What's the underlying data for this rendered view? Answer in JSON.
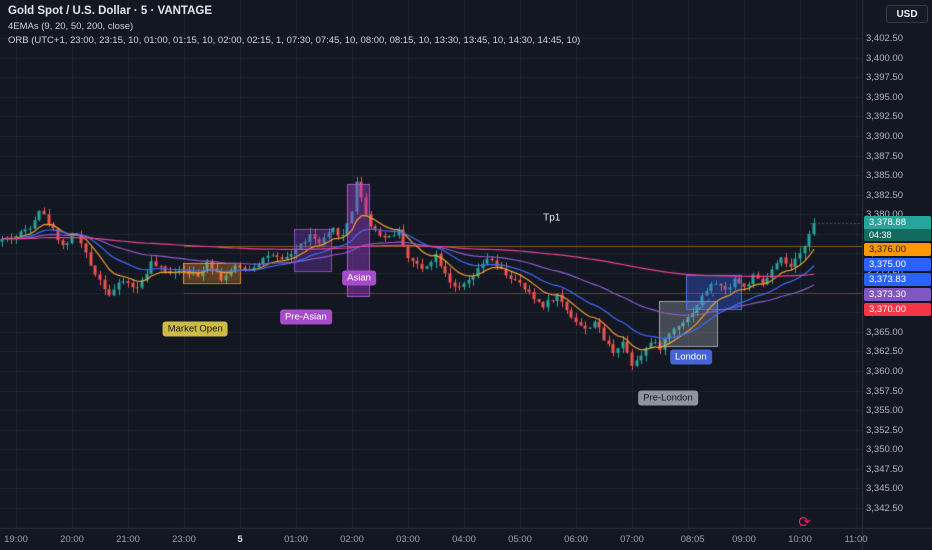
{
  "header": {
    "symbol_line": "Gold Spot / U.S. Dollar · 5 · VANTAGE",
    "indicator_line_1": "4EMAs (9, 20, 50, 200, close)",
    "indicator_line_2": "ORB (UTC+1, 23:00, 23:15, 10, 01:00, 01:15, 10, 02:00, 02:15, 1, 07:30, 07:45, 10, 08:00, 08:15, 10, 13:30, 13:45, 10, 14:30, 14:45, 10)",
    "currency_button": "USD"
  },
  "icons": {
    "timer": "⟳"
  },
  "colors": {
    "background": "#131722",
    "grid": "rgba(255,255,255,0.06)",
    "axis_text": "#b2b5be",
    "separator": "#2a2e39",
    "candle_up": "#26a69a",
    "candle_down": "#ef5350"
  },
  "chart_data": {
    "type": "candlestick",
    "symbol": "Gold Spot / U.S. Dollar",
    "interval": "5",
    "exchange": "VANTAGE",
    "price_axis": {
      "min": 3342.5,
      "max": 3402.5,
      "step": 2.5
    },
    "time_axis": [
      {
        "label": "19:00",
        "i": 0
      },
      {
        "label": "20:00",
        "i": 12
      },
      {
        "label": "21:00",
        "i": 24
      },
      {
        "label": "23:00",
        "i": 36
      },
      {
        "label": "5",
        "i": 48,
        "day": true
      },
      {
        "label": "01:00",
        "i": 60
      },
      {
        "label": "02:00",
        "i": 72
      },
      {
        "label": "03:00",
        "i": 84
      },
      {
        "label": "04:00",
        "i": 96
      },
      {
        "label": "05:00",
        "i": 108
      },
      {
        "label": "06:00",
        "i": 120
      },
      {
        "label": "07:00",
        "i": 132
      },
      {
        "label": "08:05",
        "i": 145
      },
      {
        "label": "09:00",
        "i": 156
      },
      {
        "label": "10:00",
        "i": 168
      },
      {
        "label": "11:00",
        "i": 180
      }
    ],
    "current": {
      "price": 3378.88,
      "countdown": "04:38"
    },
    "price_tags": [
      {
        "text": "3,378.88",
        "price": 3378.88,
        "bg": "#26a69a",
        "fg": "#ffffff",
        "sub": "04:38",
        "sub_bg": "#136a5e"
      },
      {
        "text": "3,376.00",
        "price": 3376.0,
        "bg": "#ff9800",
        "fg": "#15181e"
      },
      {
        "text": "3,375.00",
        "price": 3375.0,
        "bg": "#2962ff",
        "fg": "#ffffff"
      },
      {
        "text": "3,373.83",
        "price": 3373.83,
        "bg": "#2962ff",
        "fg": "#ffffff"
      },
      {
        "text": "3,373.30",
        "price": 3373.3,
        "bg": "#7e57c2",
        "fg": "#ffffff"
      },
      {
        "text": "3,370.00",
        "price": 3370.0,
        "bg": "#f23645",
        "fg": "#ffffff"
      }
    ],
    "emas": [
      {
        "period": 9,
        "color": "#f0a12f"
      },
      {
        "period": 20,
        "color": "#3d6bff"
      },
      {
        "period": 50,
        "color": "#8e5bd0"
      },
      {
        "period": 200,
        "color": "#e84393"
      }
    ],
    "candles_per_hour": 12,
    "first_index": -3,
    "last_index": 171,
    "noise_seed": 42,
    "keyframes": [
      [
        -3,
        3376.8
      ],
      [
        0,
        3377.2
      ],
      [
        3,
        3378.5
      ],
      [
        5,
        3380.6
      ],
      [
        7,
        3379.0
      ],
      [
        10,
        3376.0
      ],
      [
        13,
        3377.5
      ],
      [
        16,
        3373.5
      ],
      [
        20,
        3369.8
      ],
      [
        23,
        3371.5
      ],
      [
        26,
        3370.5
      ],
      [
        29,
        3373.8
      ],
      [
        32,
        3372.6
      ],
      [
        36,
        3373.0
      ],
      [
        39,
        3372.0
      ],
      [
        41,
        3374.2
      ],
      [
        44,
        3371.8
      ],
      [
        47,
        3373.2
      ],
      [
        50,
        3373.0
      ],
      [
        54,
        3374.8
      ],
      [
        57,
        3374.0
      ],
      [
        60,
        3375.5
      ],
      [
        63,
        3377.3
      ],
      [
        65,
        3376.2
      ],
      [
        68,
        3378.0
      ],
      [
        70,
        3377.2
      ],
      [
        72,
        3380.5
      ],
      [
        73,
        3384.3
      ],
      [
        74,
        3382.0
      ],
      [
        76,
        3378.5
      ],
      [
        79,
        3377.0
      ],
      [
        82,
        3377.8
      ],
      [
        84,
        3374.5
      ],
      [
        87,
        3373.0
      ],
      [
        90,
        3374.8
      ],
      [
        93,
        3371.5
      ],
      [
        95,
        3370.4
      ],
      [
        98,
        3372.0
      ],
      [
        101,
        3374.4
      ],
      [
        104,
        3372.8
      ],
      [
        108,
        3371.0
      ],
      [
        111,
        3369.2
      ],
      [
        113,
        3368.4
      ],
      [
        116,
        3369.6
      ],
      [
        119,
        3367.0
      ],
      [
        122,
        3365.2
      ],
      [
        124,
        3366.4
      ],
      [
        126,
        3364.0
      ],
      [
        128,
        3362.5
      ],
      [
        130,
        3363.8
      ],
      [
        132,
        3360.9
      ],
      [
        134,
        3362.2
      ],
      [
        136,
        3363.6
      ],
      [
        138,
        3363.0
      ],
      [
        140,
        3364.8
      ],
      [
        142,
        3366.0
      ],
      [
        144,
        3366.8
      ],
      [
        146,
        3368.5
      ],
      [
        148,
        3370.4
      ],
      [
        150,
        3371.3
      ],
      [
        152,
        3370.2
      ],
      [
        154,
        3371.8
      ],
      [
        156,
        3370.6
      ],
      [
        158,
        3372.0
      ],
      [
        160,
        3371.0
      ],
      [
        162,
        3372.8
      ],
      [
        164,
        3374.2
      ],
      [
        166,
        3373.2
      ],
      [
        168,
        3374.8
      ],
      [
        169,
        3376.2
      ],
      [
        170,
        3377.8
      ],
      [
        171,
        3378.88
      ]
    ],
    "wick_marks": [
      {
        "i": 73,
        "high": 3384.8
      },
      {
        "i": 132,
        "low": 3360.1
      }
    ],
    "levels": [
      {
        "price": 3376.0,
        "color": "rgba(255,152,0,0.5)",
        "from": 36
      },
      {
        "price": 3370.0,
        "color": "rgba(242,54,69,0.5)",
        "from": 36
      }
    ],
    "zones": [
      {
        "name": "market-open-box",
        "t1": 35.8,
        "t2": 48.0,
        "p1": 3371.3,
        "p2": 3373.8,
        "fill": "rgba(255,160,40,0.30)",
        "border": "rgba(255,160,40,0.85)"
      },
      {
        "name": "pre-asian-box",
        "t1": 59.6,
        "t2": 67.5,
        "p1": 3372.7,
        "p2": 3378.1,
        "fill": "rgba(120,60,190,0.35)",
        "border": "rgba(150,80,220,0.85)"
      },
      {
        "name": "asian-box",
        "t1": 70.9,
        "t2": 75.6,
        "p1": 3369.5,
        "p2": 3383.8,
        "fill": "rgba(150,60,200,0.45)",
        "border": "rgba(180,90,230,0.9)"
      },
      {
        "name": "pre-london-box",
        "t1": 137.8,
        "t2": 150.2,
        "p1": 3363.1,
        "p2": 3368.9,
        "fill": "rgba(150,155,165,0.38)",
        "border": "rgba(175,180,190,0.85)"
      },
      {
        "name": "london-box",
        "t1": 143.6,
        "t2": 155.3,
        "p1": 3367.9,
        "p2": 3372.3,
        "fill": "rgba(60,110,255,0.32)",
        "border": "rgba(80,130,255,0.85)"
      }
    ],
    "trend_lines": [
      {
        "t1": 139,
        "p1": 3363.6,
        "t2": 150,
        "p2": 3370.0,
        "color": "rgba(255,255,255,0.45)"
      }
    ],
    "session_labels": [
      {
        "name": "market-open-label",
        "text": "Market Open",
        "t": 38.4,
        "p": 3365.3,
        "bg": "#cdbb45",
        "fg": "#15181e"
      },
      {
        "name": "pre-asian-label",
        "text": "Pre-Asian",
        "t": 62.1,
        "p": 3366.9,
        "bg": "#a64ccb",
        "fg": "#ffffff"
      },
      {
        "name": "asian-label",
        "text": "Asian",
        "t": 73.5,
        "p": 3371.8,
        "bg": "#a64ccb",
        "fg": "#ffffff"
      },
      {
        "name": "pre-london-label",
        "text": "Pre-London",
        "t": 139.7,
        "p": 3356.6,
        "bg": "#8f939e",
        "fg": "#15181e"
      },
      {
        "name": "london-label",
        "text": "London",
        "t": 144.6,
        "p": 3361.8,
        "bg": "#4664d8",
        "fg": "#ffffff"
      }
    ],
    "annotations": [
      {
        "name": "tp1-annotation",
        "text": "Tp1",
        "t": 114.8,
        "p": 3379.5
      }
    ]
  }
}
